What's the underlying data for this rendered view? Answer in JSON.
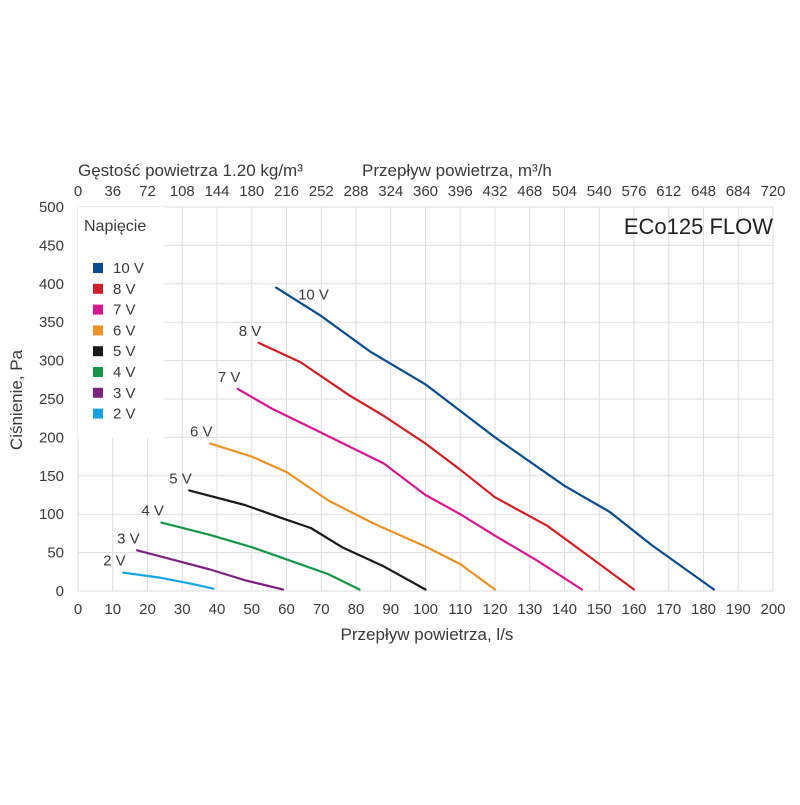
{
  "chart_data": {
    "type": "line",
    "model_name": "ECo125 FLOW",
    "top_left_title": "Gęstość powietrza 1.20 kg/m³",
    "xlabel_bottom": "Przepływ powietrza, l/s",
    "xlabel_top": "Przepływ powietrza, m³/h",
    "ylabel": "Ciśnienie, Pa",
    "xlim": [
      0,
      200
    ],
    "ylim": [
      0,
      500
    ],
    "x_ticks_bottom": [
      "0",
      "10",
      "20",
      "30",
      "40",
      "50",
      "60",
      "70",
      "80",
      "90",
      "100",
      "110",
      "120",
      "130",
      "140",
      "150",
      "160",
      "170",
      "180",
      "190",
      "200"
    ],
    "x_ticks_top": [
      "0",
      "36",
      "72",
      "108",
      "144",
      "180",
      "216",
      "252",
      "288",
      "324",
      "360",
      "396",
      "432",
      "468",
      "504",
      "540",
      "576",
      "612",
      "648",
      "684",
      "720"
    ],
    "y_ticks": [
      "0",
      "50",
      "100",
      "150",
      "200",
      "250",
      "300",
      "350",
      "400",
      "450",
      "500"
    ],
    "legend_title": "Napięcie",
    "series": [
      {
        "name": "10 V",
        "color": "#0b4a8b",
        "label": "10 V",
        "points": [
          [
            57,
            395
          ],
          [
            70,
            358
          ],
          [
            84,
            312
          ],
          [
            100,
            269
          ],
          [
            120,
            200
          ],
          [
            140,
            137
          ],
          [
            153,
            103
          ],
          [
            165,
            60
          ],
          [
            183,
            2
          ]
        ]
      },
      {
        "name": "8 V",
        "color": "#cc1f26",
        "label": "8 V",
        "points": [
          [
            52,
            323
          ],
          [
            64,
            298
          ],
          [
            78,
            255
          ],
          [
            88,
            228
          ],
          [
            100,
            192
          ],
          [
            110,
            158
          ],
          [
            120,
            122
          ],
          [
            135,
            85
          ],
          [
            145,
            52
          ],
          [
            160,
            2
          ]
        ]
      },
      {
        "name": "7 V",
        "color": "#d6188e",
        "label": "7 V",
        "points": [
          [
            46,
            263
          ],
          [
            56,
            237
          ],
          [
            66,
            215
          ],
          [
            75,
            195
          ],
          [
            88,
            166
          ],
          [
            100,
            125
          ],
          [
            110,
            100
          ],
          [
            120,
            72
          ],
          [
            132,
            40
          ],
          [
            145,
            2
          ]
        ]
      },
      {
        "name": "6 V",
        "color": "#ea9128",
        "label": "6 V",
        "points": [
          [
            38,
            192
          ],
          [
            50,
            175
          ],
          [
            60,
            155
          ],
          [
            72,
            118
          ],
          [
            85,
            88
          ],
          [
            100,
            58
          ],
          [
            110,
            35
          ],
          [
            120,
            2
          ]
        ]
      },
      {
        "name": "5 V",
        "color": "#1a1a1a",
        "label": "5 V",
        "points": [
          [
            32,
            131
          ],
          [
            48,
            112
          ],
          [
            58,
            96
          ],
          [
            67,
            82
          ],
          [
            76,
            57
          ],
          [
            88,
            32
          ],
          [
            100,
            2
          ]
        ]
      },
      {
        "name": "4 V",
        "color": "#17934a",
        "label": "4 V",
        "points": [
          [
            24,
            89
          ],
          [
            38,
            73
          ],
          [
            50,
            57
          ],
          [
            62,
            38
          ],
          [
            72,
            22
          ],
          [
            81,
            2
          ]
        ]
      },
      {
        "name": "3 V",
        "color": "#7c2380",
        "label": "3 V",
        "points": [
          [
            17,
            53
          ],
          [
            28,
            40
          ],
          [
            38,
            28
          ],
          [
            48,
            14
          ],
          [
            59,
            2
          ]
        ]
      },
      {
        "name": "2 V",
        "color": "#1aa4df",
        "label": "2 V",
        "points": [
          [
            13,
            24
          ],
          [
            24,
            17
          ],
          [
            32,
            10
          ],
          [
            39,
            3
          ]
        ]
      }
    ]
  }
}
